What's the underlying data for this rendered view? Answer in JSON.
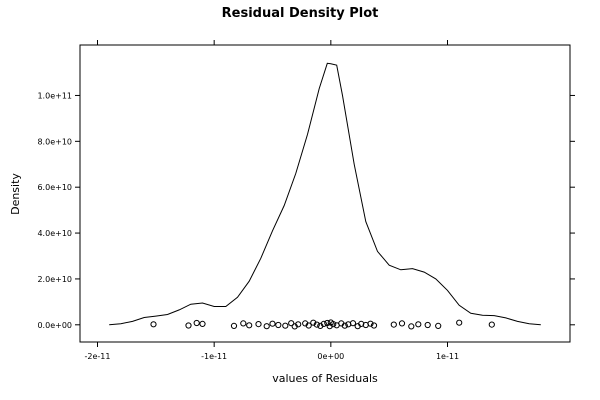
{
  "chart_data": {
    "type": "line",
    "title": "Residual Density Plot",
    "xlabel": "values of Residuals",
    "ylabel": "Density",
    "xlim": [
      -2.15e-11,
      2.05e-11
    ],
    "ylim": [
      -7500000000.0,
      122000000000.0
    ],
    "x_ticks": [
      {
        "value": -2e-11,
        "label": "-2e-11"
      },
      {
        "value": -1e-11,
        "label": "-1e-11"
      },
      {
        "value": 0,
        "label": "0e+00"
      },
      {
        "value": 1e-11,
        "label": "1e-11"
      }
    ],
    "y_ticks": [
      {
        "value": 0,
        "label": "0.0e+00"
      },
      {
        "value": 20000000000.0,
        "label": "2.0e+10"
      },
      {
        "value": 40000000000.0,
        "label": "4.0e+10"
      },
      {
        "value": 60000000000.0,
        "label": "6.0e+10"
      },
      {
        "value": 80000000000.0,
        "label": "8.0e+10"
      },
      {
        "value": 100000000000.0,
        "label": "1.0e+11"
      }
    ],
    "grid": false,
    "series": [
      {
        "kind": "density-curve",
        "x": [
          -1.9e-11,
          -1.8e-11,
          -1.7e-11,
          -1.6e-11,
          -1.5e-11,
          -1.4e-11,
          -1.3e-11,
          -1.2e-11,
          -1.1e-11,
          -1e-11,
          -9e-12,
          -8e-12,
          -7e-12,
          -6e-12,
          -5e-12,
          -4e-12,
          -3e-12,
          -2e-12,
          -1e-12,
          -3e-13,
          0,
          5e-13,
          1e-12,
          2e-12,
          3e-12,
          4e-12,
          5e-12,
          6e-12,
          7e-12,
          8e-12,
          9e-12,
          1e-11,
          1.1e-11,
          1.2e-11,
          1.3e-11,
          1.4e-11,
          1.5e-11,
          1.6e-11,
          1.7e-11,
          1.8e-11
        ],
        "y": [
          0.0,
          500000000.0,
          1500000000.0,
          3200000000.0,
          3800000000.0,
          4500000000.0,
          6500000000.0,
          9000000000.0,
          9500000000.0,
          8000000000.0,
          8000000000.0,
          12000000000.0,
          19000000000.0,
          29000000000.0,
          41000000000.0,
          52000000000.0,
          66000000000.0,
          83000000000.0,
          103000000000.0,
          114000000000.0,
          113800000000.0,
          113200000000.0,
          100000000000.0,
          70000000000.0,
          45000000000.0,
          32000000000.0,
          26000000000.0,
          24000000000.0,
          24500000000.0,
          23000000000.0,
          20000000000.0,
          15000000000.0,
          8500000000.0,
          5000000000.0,
          4200000000.0,
          4000000000.0,
          3000000000.0,
          1500000000.0,
          500000000.0,
          0.0
        ]
      },
      {
        "kind": "rug-points",
        "x": [
          -1.52e-11,
          -1.22e-11,
          -1.15e-11,
          -1.1e-11,
          -8.3e-12,
          -7.5e-12,
          -7e-12,
          -6.2e-12,
          -5.5e-12,
          -5e-12,
          -4.5e-12,
          -3.9e-12,
          -3.4e-12,
          -3.1e-12,
          -2.8e-12,
          -2.2e-12,
          -1.9e-12,
          -1.5e-12,
          -1.2e-12,
          -9e-13,
          -6e-13,
          -3e-13,
          -1e-13,
          0,
          2e-13,
          5e-13,
          9e-13,
          1.2e-12,
          1.5e-12,
          1.9e-12,
          2.3e-12,
          2.6e-12,
          3e-12,
          3.4e-12,
          3.7e-12,
          5.4e-12,
          6.1e-12,
          6.9e-12,
          7.5e-12,
          8.3e-12,
          9.2e-12,
          1.1e-11,
          1.38e-11
        ],
        "y": [
          200000000.0,
          -300000000.0,
          800000000.0,
          400000000.0,
          -500000000.0,
          600000000.0,
          -200000000.0,
          300000000.0,
          -600000000.0,
          500000000.0,
          -100000000.0,
          -400000000.0,
          700000000.0,
          -700000000.0,
          200000000.0,
          600000000.0,
          -300000000.0,
          900000000.0,
          100000000.0,
          -500000000.0,
          400000000.0,
          800000000.0,
          -600000000.0,
          1000000000.0,
          300000000.0,
          -200000000.0,
          600000000.0,
          -400000000.0,
          200000000.0,
          700000000.0,
          -600000000.0,
          400000000.0,
          -100000000.0,
          500000000.0,
          -300000000.0,
          100000000.0,
          600000000.0,
          -700000000.0,
          200000000.0,
          -100000000.0,
          -500000000.0,
          900000000.0,
          100000000.0
        ]
      }
    ]
  }
}
